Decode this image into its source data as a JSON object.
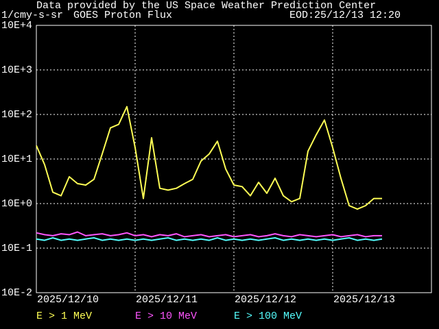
{
  "chart_data": {
    "type": "line",
    "source": "Data provided by the US Space Weather Prediction Center",
    "y_label": "1/cmy-s-sr",
    "title": "GOES Proton Flux",
    "timestamp": "EOD:25/12/13 12:20",
    "log_scale": true,
    "grid": true,
    "ylim": [
      0.01,
      10000
    ],
    "yticks": [
      {
        "value": 0.01,
        "label": "10E-2"
      },
      {
        "value": 0.1,
        "label": "10E-1"
      },
      {
        "value": 1,
        "label": "10E+0"
      },
      {
        "value": 10,
        "label": "10E+1"
      },
      {
        "value": 100,
        "label": "10E+2"
      },
      {
        "value": 1000,
        "label": "10E+3"
      },
      {
        "value": 10000,
        "label": "10E+4"
      }
    ],
    "categories": [
      "2025/12/10",
      null,
      null,
      null,
      null,
      null,
      null,
      null,
      null,
      null,
      null,
      null,
      "2025/12/11",
      null,
      null,
      null,
      null,
      null,
      null,
      null,
      null,
      null,
      null,
      null,
      "2025/12/12",
      null,
      null,
      null,
      null,
      null,
      null,
      null,
      null,
      null,
      null,
      null,
      "2025/12/13",
      null,
      null,
      null,
      null,
      null,
      null,
      null,
      null,
      null,
      null,
      null
    ],
    "series": [
      {
        "name": "E > 1 MeV",
        "color": "#ffff55",
        "values": [
          20,
          7.5,
          1.8,
          1.5,
          4,
          2.8,
          2.6,
          3.5,
          13,
          50,
          60,
          150,
          18,
          1.3,
          30,
          2.2,
          2,
          2.2,
          2.8,
          3.5,
          9,
          13,
          25,
          6,
          2.6,
          2.4,
          1.5,
          3,
          1.7,
          3.7,
          1.5,
          1.1,
          1.3,
          15,
          35,
          75,
          18,
          3.7,
          0.9,
          0.75,
          0.9,
          1.3,
          1.3,
          null,
          null,
          null,
          null,
          null
        ]
      },
      {
        "name": "E > 10 MeV",
        "color": "#ff55ff",
        "values": [
          0.22,
          0.2,
          0.19,
          0.21,
          0.2,
          0.23,
          0.19,
          0.2,
          0.21,
          0.19,
          0.2,
          0.22,
          0.19,
          0.2,
          0.18,
          0.2,
          0.19,
          0.21,
          0.18,
          0.19,
          0.2,
          0.18,
          0.19,
          0.2,
          0.18,
          0.19,
          0.2,
          0.18,
          0.19,
          0.21,
          0.19,
          0.18,
          0.2,
          0.19,
          0.18,
          0.19,
          0.2,
          0.18,
          0.19,
          0.2,
          0.18,
          0.19,
          0.19,
          null,
          null,
          null,
          null,
          null
        ]
      },
      {
        "name": "E > 100 MeV",
        "color": "#55ffff",
        "values": [
          0.16,
          0.15,
          0.17,
          0.15,
          0.16,
          0.15,
          0.16,
          0.17,
          0.15,
          0.16,
          0.15,
          0.16,
          0.15,
          0.16,
          0.15,
          0.16,
          0.17,
          0.15,
          0.16,
          0.15,
          0.16,
          0.15,
          0.17,
          0.15,
          0.16,
          0.15,
          0.16,
          0.15,
          0.16,
          0.17,
          0.15,
          0.16,
          0.15,
          0.16,
          0.15,
          0.16,
          0.15,
          0.16,
          0.17,
          0.15,
          0.16,
          0.15,
          0.16,
          null,
          null,
          null,
          null,
          null
        ]
      }
    ]
  }
}
